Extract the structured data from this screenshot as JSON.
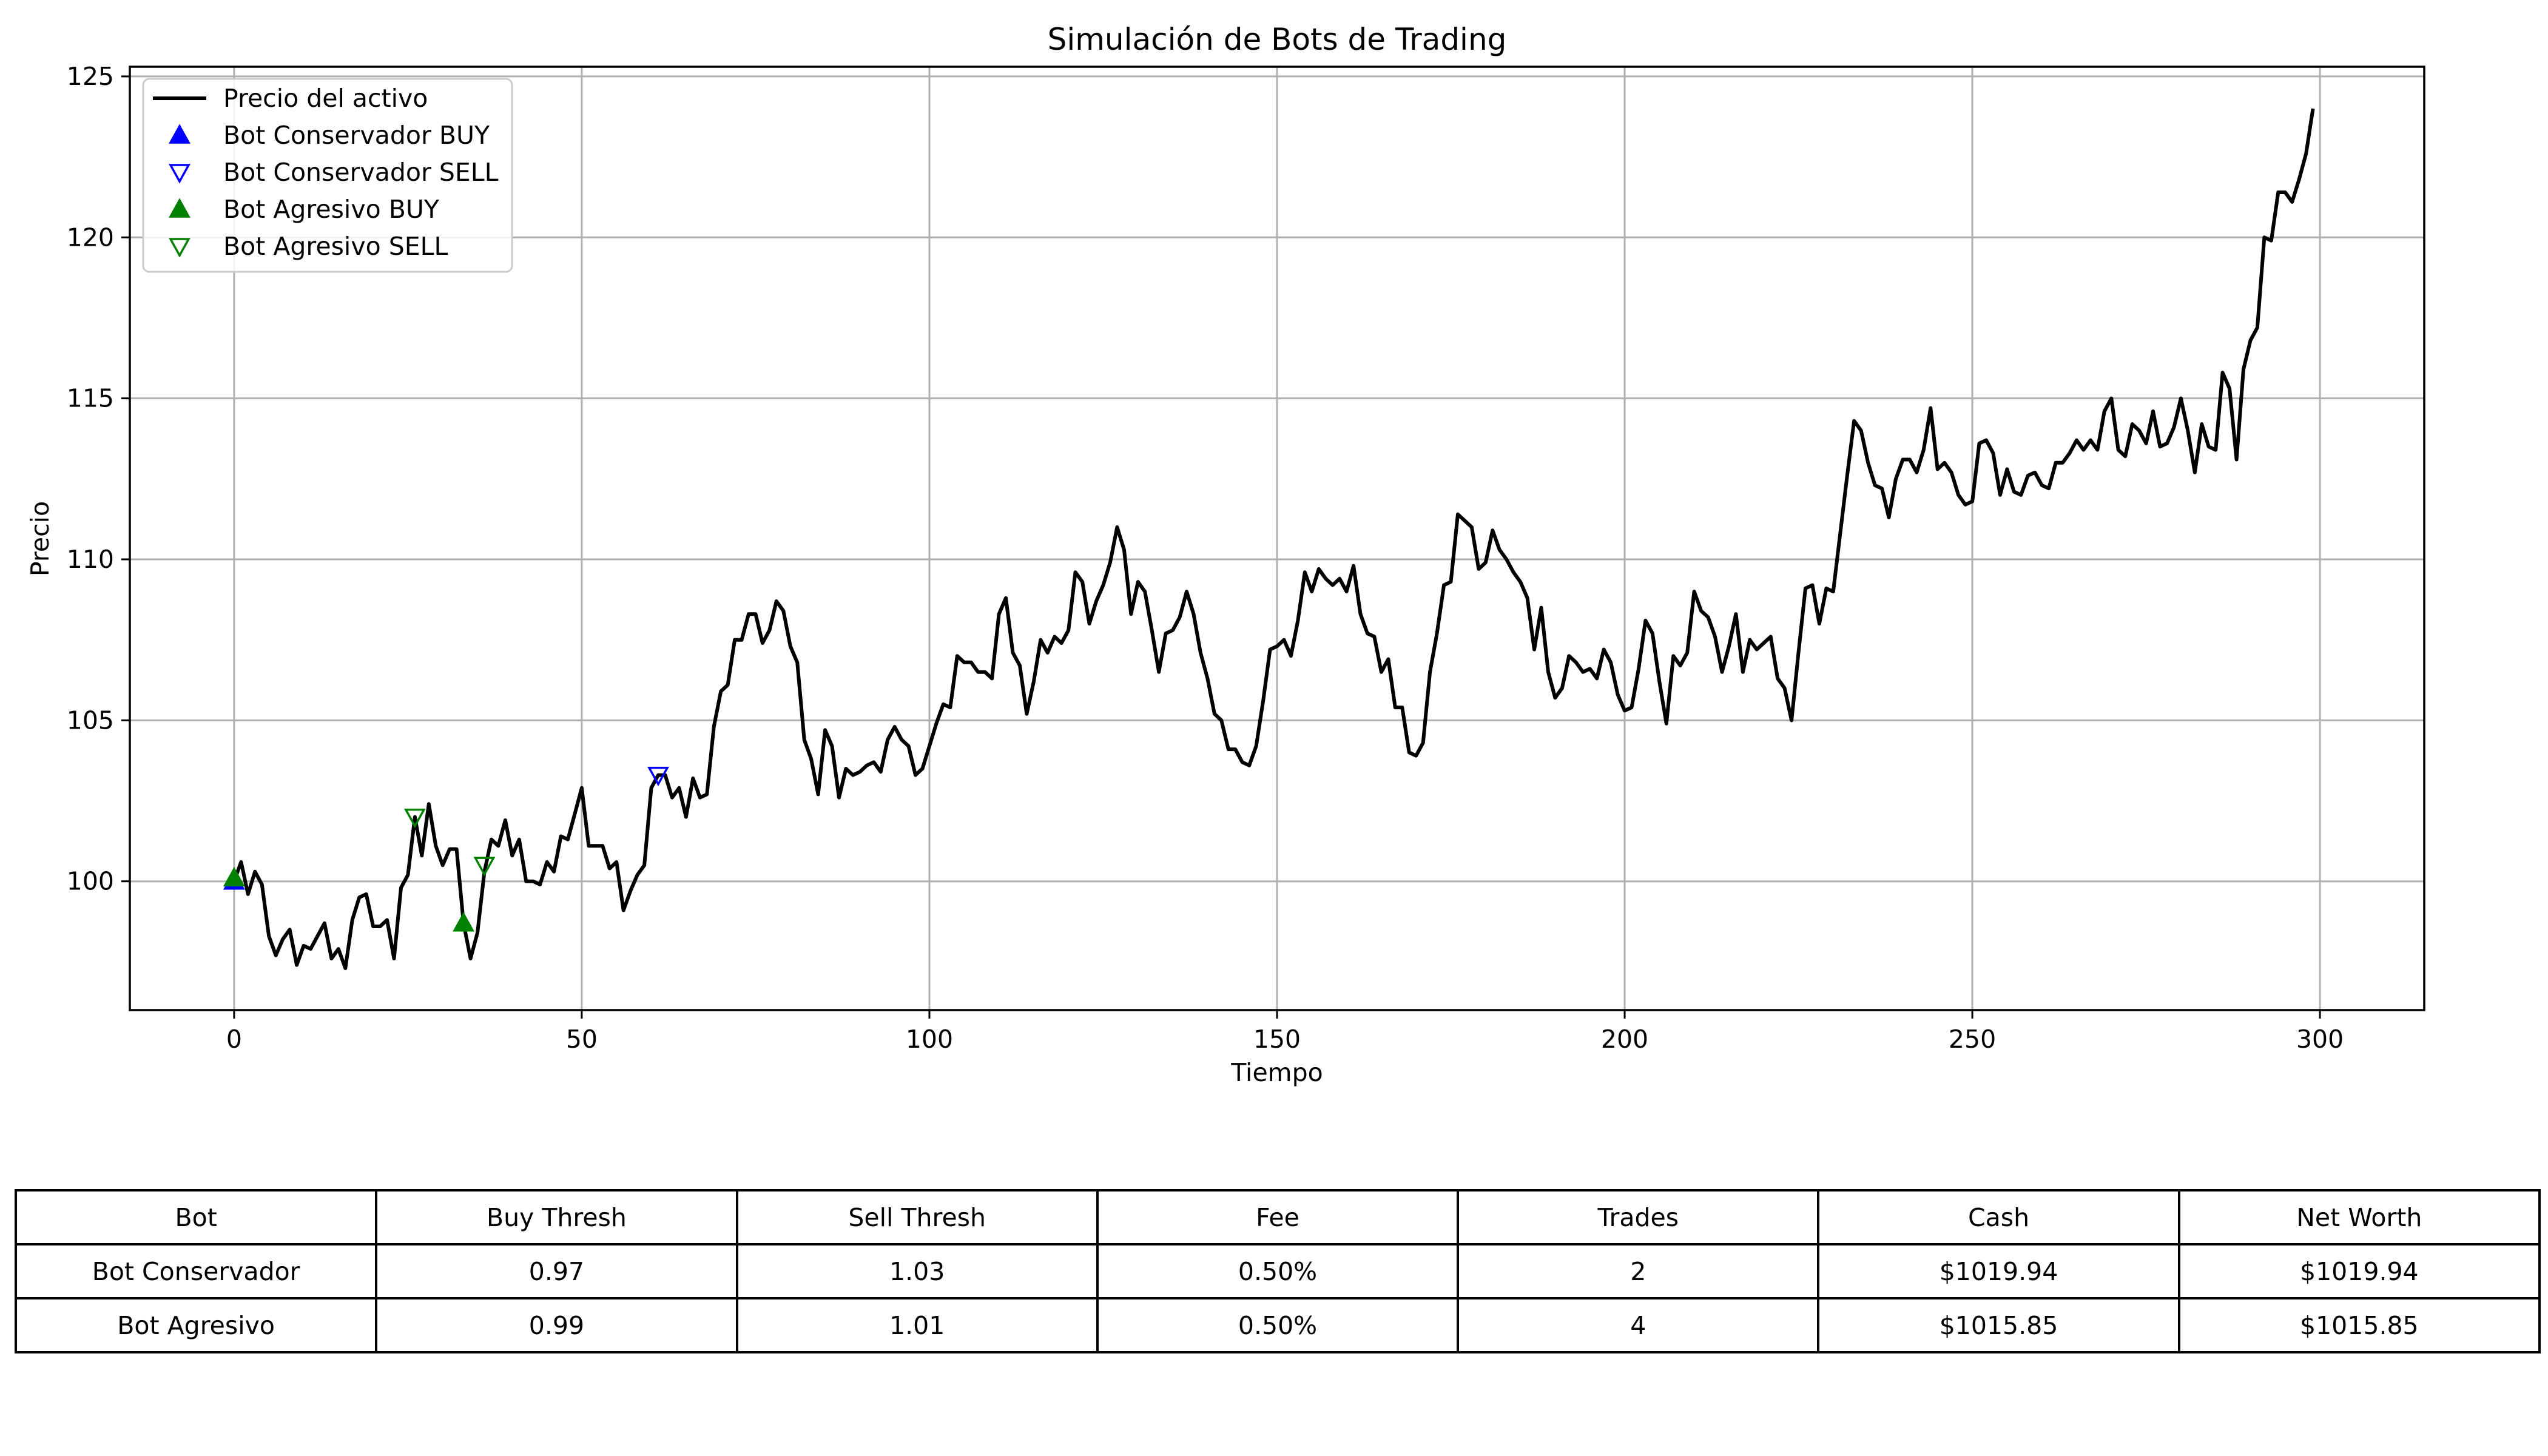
{
  "chart_data": {
    "type": "line",
    "title": "Simulación de Bots de Trading",
    "xlabel": "Tiempo",
    "ylabel": "Precio",
    "xlim": [
      -15,
      315
    ],
    "ylim": [
      96,
      125.3
    ],
    "xticks": [
      0,
      50,
      100,
      150,
      200,
      250,
      300
    ],
    "yticks": [
      100,
      105,
      110,
      115,
      120,
      125
    ],
    "grid": true,
    "legend_position": "top-left",
    "legend": [
      {
        "label": "Precio del activo",
        "kind": "line",
        "color": "#000000"
      },
      {
        "label": "Bot Conservador BUY",
        "kind": "triangle-up-filled",
        "color": "#0000ff"
      },
      {
        "label": "Bot Conservador SELL",
        "kind": "triangle-down-hollow",
        "color": "#0000ff"
      },
      {
        "label": "Bot Agresivo BUY",
        "kind": "triangle-up-filled",
        "color": "#008000"
      },
      {
        "label": "Bot Agresivo SELL",
        "kind": "triangle-down-hollow",
        "color": "#008000"
      }
    ],
    "price_series": {
      "name": "Precio del activo",
      "color": "#000000",
      "points": [
        [
          0,
          100
        ],
        [
          1,
          100.6
        ],
        [
          2,
          99.6
        ],
        [
          3,
          100.3
        ],
        [
          4,
          99.9
        ],
        [
          5,
          98.3
        ],
        [
          6,
          97.7
        ],
        [
          7,
          98.2
        ],
        [
          8,
          98.5
        ],
        [
          9,
          97.4
        ],
        [
          10,
          98
        ],
        [
          11,
          97.9
        ],
        [
          12,
          98.3
        ],
        [
          13,
          98.7
        ],
        [
          14,
          97.6
        ],
        [
          15,
          97.9
        ],
        [
          16,
          97.3
        ],
        [
          17,
          98.8
        ],
        [
          18,
          99.5
        ],
        [
          19,
          99.6
        ],
        [
          20,
          98.6
        ],
        [
          21,
          98.6
        ],
        [
          22,
          98.8
        ],
        [
          23,
          97.6
        ],
        [
          24,
          99.8
        ],
        [
          25,
          100.2
        ],
        [
          26,
          102
        ],
        [
          27,
          100.8
        ],
        [
          28,
          102.4
        ],
        [
          29,
          101.1
        ],
        [
          30,
          100.5
        ],
        [
          31,
          101
        ],
        [
          32,
          101
        ],
        [
          33,
          98.7
        ],
        [
          34,
          97.6
        ],
        [
          35,
          98.4
        ],
        [
          36,
          100.3
        ],
        [
          37,
          101.3
        ],
        [
          38,
          101.1
        ],
        [
          39,
          101.9
        ],
        [
          40,
          100.8
        ],
        [
          41,
          101.3
        ],
        [
          42,
          100
        ],
        [
          43,
          100
        ],
        [
          44,
          99.9
        ],
        [
          45,
          100.6
        ],
        [
          46,
          100.3
        ],
        [
          47,
          101.4
        ],
        [
          48,
          101.3
        ],
        [
          49,
          102.1
        ],
        [
          50,
          102.9
        ],
        [
          51,
          101.1
        ],
        [
          52,
          101.1
        ],
        [
          53,
          101.1
        ],
        [
          54,
          100.4
        ],
        [
          55,
          100.6
        ],
        [
          56,
          99.1
        ],
        [
          57,
          99.7
        ],
        [
          58,
          100.2
        ],
        [
          59,
          100.5
        ],
        [
          60,
          102.9
        ],
        [
          61,
          103.3
        ],
        [
          62,
          103.3
        ],
        [
          63,
          102.6
        ],
        [
          64,
          102.9
        ],
        [
          65,
          102
        ],
        [
          66,
          103.2
        ],
        [
          67,
          102.6
        ],
        [
          68,
          102.7
        ],
        [
          69,
          104.8
        ],
        [
          70,
          105.9
        ],
        [
          71,
          106.1
        ],
        [
          72,
          107.5
        ],
        [
          73,
          107.5
        ],
        [
          74,
          108.3
        ],
        [
          75,
          108.3
        ],
        [
          76,
          107.4
        ],
        [
          77,
          107.8
        ],
        [
          78,
          108.7
        ],
        [
          79,
          108.4
        ],
        [
          80,
          107.3
        ],
        [
          81,
          106.8
        ],
        [
          82,
          104.4
        ],
        [
          83,
          103.8
        ],
        [
          84,
          102.7
        ],
        [
          85,
          104.7
        ],
        [
          86,
          104.2
        ],
        [
          87,
          102.6
        ],
        [
          88,
          103.5
        ],
        [
          89,
          103.3
        ],
        [
          90,
          103.4
        ],
        [
          91,
          103.6
        ],
        [
          92,
          103.7
        ],
        [
          93,
          103.4
        ],
        [
          94,
          104.4
        ],
        [
          95,
          104.8
        ],
        [
          96,
          104.4
        ],
        [
          97,
          104.2
        ],
        [
          98,
          103.3
        ],
        [
          99,
          103.5
        ],
        [
          100,
          104.2
        ],
        [
          101,
          104.9
        ],
        [
          102,
          105.5
        ],
        [
          103,
          105.4
        ],
        [
          104,
          107
        ],
        [
          105,
          106.8
        ],
        [
          106,
          106.8
        ],
        [
          107,
          106.5
        ],
        [
          108,
          106.5
        ],
        [
          109,
          106.3
        ],
        [
          110,
          108.3
        ],
        [
          111,
          108.8
        ],
        [
          112,
          107.1
        ],
        [
          113,
          106.7
        ],
        [
          114,
          105.2
        ],
        [
          115,
          106.2
        ],
        [
          116,
          107.5
        ],
        [
          117,
          107.1
        ],
        [
          118,
          107.6
        ],
        [
          119,
          107.4
        ],
        [
          120,
          107.8
        ],
        [
          121,
          109.6
        ],
        [
          122,
          109.3
        ],
        [
          123,
          108
        ],
        [
          124,
          108.7
        ],
        [
          125,
          109.2
        ],
        [
          126,
          109.9
        ],
        [
          127,
          111
        ],
        [
          128,
          110.3
        ],
        [
          129,
          108.3
        ],
        [
          130,
          109.3
        ],
        [
          131,
          109
        ],
        [
          132,
          107.8
        ],
        [
          133,
          106.5
        ],
        [
          134,
          107.7
        ],
        [
          135,
          107.8
        ],
        [
          136,
          108.2
        ],
        [
          137,
          109
        ],
        [
          138,
          108.3
        ],
        [
          139,
          107.1
        ],
        [
          140,
          106.3
        ],
        [
          141,
          105.2
        ],
        [
          142,
          105
        ],
        [
          143,
          104.1
        ],
        [
          144,
          104.1
        ],
        [
          145,
          103.7
        ],
        [
          146,
          103.6
        ],
        [
          147,
          104.2
        ],
        [
          148,
          105.6
        ],
        [
          149,
          107.2
        ],
        [
          150,
          107.3
        ],
        [
          151,
          107.5
        ],
        [
          152,
          107
        ],
        [
          153,
          108.1
        ],
        [
          154,
          109.6
        ],
        [
          155,
          109
        ],
        [
          156,
          109.7
        ],
        [
          157,
          109.4
        ],
        [
          158,
          109.2
        ],
        [
          159,
          109.4
        ],
        [
          160,
          109
        ],
        [
          161,
          109.8
        ],
        [
          162,
          108.3
        ],
        [
          163,
          107.7
        ],
        [
          164,
          107.6
        ],
        [
          165,
          106.5
        ],
        [
          166,
          106.9
        ],
        [
          167,
          105.4
        ],
        [
          168,
          105.4
        ],
        [
          169,
          104
        ],
        [
          170,
          103.9
        ],
        [
          171,
          104.3
        ],
        [
          172,
          106.5
        ],
        [
          173,
          107.7
        ],
        [
          174,
          109.2
        ],
        [
          175,
          109.3
        ],
        [
          176,
          111.4
        ],
        [
          177,
          111.2
        ],
        [
          178,
          111
        ],
        [
          179,
          109.7
        ],
        [
          180,
          109.9
        ],
        [
          181,
          110.9
        ],
        [
          182,
          110.3
        ],
        [
          183,
          110
        ],
        [
          184,
          109.6
        ],
        [
          185,
          109.3
        ],
        [
          186,
          108.8
        ],
        [
          187,
          107.2
        ],
        [
          188,
          108.5
        ],
        [
          189,
          106.5
        ],
        [
          190,
          105.7
        ],
        [
          191,
          106
        ],
        [
          192,
          107
        ],
        [
          193,
          106.8
        ],
        [
          194,
          106.5
        ],
        [
          195,
          106.6
        ],
        [
          196,
          106.3
        ],
        [
          197,
          107.2
        ],
        [
          198,
          106.8
        ],
        [
          199,
          105.8
        ],
        [
          200,
          105.3
        ],
        [
          201,
          105.4
        ],
        [
          202,
          106.6
        ],
        [
          203,
          108.1
        ],
        [
          204,
          107.7
        ],
        [
          205,
          106.2
        ],
        [
          206,
          104.9
        ],
        [
          207,
          107
        ],
        [
          208,
          106.7
        ],
        [
          209,
          107.1
        ],
        [
          210,
          109
        ],
        [
          211,
          108.4
        ],
        [
          212,
          108.2
        ],
        [
          213,
          107.6
        ],
        [
          214,
          106.5
        ],
        [
          215,
          107.3
        ],
        [
          216,
          108.3
        ],
        [
          217,
          106.5
        ],
        [
          218,
          107.5
        ],
        [
          219,
          107.2
        ],
        [
          220,
          107.4
        ],
        [
          221,
          107.6
        ],
        [
          222,
          106.3
        ],
        [
          223,
          106
        ],
        [
          224,
          105
        ],
        [
          225,
          107.1
        ],
        [
          226,
          109.1
        ],
        [
          227,
          109.2
        ],
        [
          228,
          108
        ],
        [
          229,
          109.1
        ],
        [
          230,
          109
        ],
        [
          231,
          110.8
        ],
        [
          232,
          112.6
        ],
        [
          233,
          114.3
        ],
        [
          234,
          114
        ],
        [
          235,
          113
        ],
        [
          236,
          112.3
        ],
        [
          237,
          112.2
        ],
        [
          238,
          111.3
        ],
        [
          239,
          112.5
        ],
        [
          240,
          113.1
        ],
        [
          241,
          113.1
        ],
        [
          242,
          112.7
        ],
        [
          243,
          113.4
        ],
        [
          244,
          114.7
        ],
        [
          245,
          112.8
        ],
        [
          246,
          113
        ],
        [
          247,
          112.7
        ],
        [
          248,
          112
        ],
        [
          249,
          111.7
        ],
        [
          250,
          111.8
        ],
        [
          251,
          113.6
        ],
        [
          252,
          113.7
        ],
        [
          253,
          113.3
        ],
        [
          254,
          112
        ],
        [
          255,
          112.8
        ],
        [
          256,
          112.1
        ],
        [
          257,
          112
        ],
        [
          258,
          112.6
        ],
        [
          259,
          112.7
        ],
        [
          260,
          112.3
        ],
        [
          261,
          112.2
        ],
        [
          262,
          113
        ],
        [
          263,
          113
        ],
        [
          264,
          113.3
        ],
        [
          265,
          113.7
        ],
        [
          266,
          113.4
        ],
        [
          267,
          113.7
        ],
        [
          268,
          113.4
        ],
        [
          269,
          114.6
        ],
        [
          270,
          115
        ],
        [
          271,
          113.4
        ],
        [
          272,
          113.2
        ],
        [
          273,
          114.2
        ],
        [
          274,
          114
        ],
        [
          275,
          113.6
        ],
        [
          276,
          114.6
        ],
        [
          277,
          113.5
        ],
        [
          278,
          113.6
        ],
        [
          279,
          114.1
        ],
        [
          280,
          115
        ],
        [
          281,
          114
        ],
        [
          282,
          112.7
        ],
        [
          283,
          114.2
        ],
        [
          284,
          113.5
        ],
        [
          285,
          113.4
        ],
        [
          286,
          115.8
        ],
        [
          287,
          115.3
        ],
        [
          288,
          113.1
        ],
        [
          289,
          115.9
        ],
        [
          290,
          116.8
        ],
        [
          291,
          117.2
        ],
        [
          292,
          120
        ],
        [
          293,
          119.9
        ],
        [
          294,
          121.4
        ],
        [
          295,
          121.4
        ],
        [
          296,
          121.1
        ],
        [
          297,
          121.8
        ],
        [
          298,
          122.6
        ],
        [
          299,
          124
        ]
      ]
    },
    "trade_series": [
      {
        "name": "Bot Conservador BUY",
        "color": "#0000ff",
        "marker": "up",
        "filled": true,
        "points": [
          [
            0,
            100
          ]
        ]
      },
      {
        "name": "Bot Conservador SELL",
        "color": "#0000ff",
        "marker": "down",
        "filled": false,
        "points": [
          [
            61,
            103.3
          ]
        ]
      },
      {
        "name": "Bot Agresivo BUY",
        "color": "#008000",
        "marker": "up",
        "filled": true,
        "points": [
          [
            0,
            100.1
          ],
          [
            33,
            98.7
          ]
        ]
      },
      {
        "name": "Bot Agresivo SELL",
        "color": "#008000",
        "marker": "down",
        "filled": false,
        "points": [
          [
            26,
            102
          ],
          [
            36,
            100.5
          ]
        ]
      }
    ]
  },
  "table": {
    "columns": [
      "Bot",
      "Buy Thresh",
      "Sell Thresh",
      "Fee",
      "Trades",
      "Cash",
      "Net Worth"
    ],
    "rows": [
      [
        "Bot Conservador",
        "0.97",
        "1.03",
        "0.50%",
        "2",
        "$1019.94",
        "$1019.94"
      ],
      [
        "Bot Agresivo",
        "0.99",
        "1.01",
        "0.50%",
        "4",
        "$1015.85",
        "$1015.85"
      ]
    ]
  }
}
